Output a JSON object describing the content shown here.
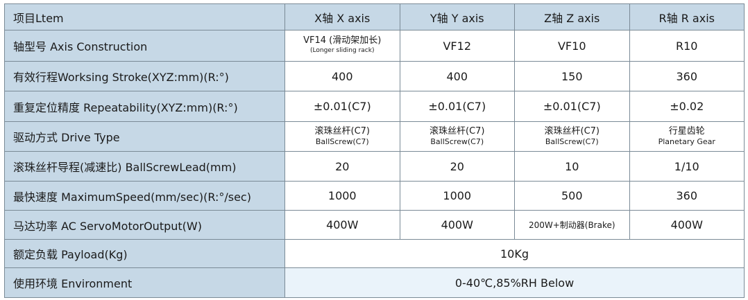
{
  "header": {
    "label": "项目Ltem",
    "x": "X轴 X axis",
    "y": "Y轴 Y axis",
    "z": "Z轴 Z axis",
    "r": "R轴 R axis"
  },
  "rows": {
    "construction": {
      "label": "轴型号 Axis Construction",
      "x_line1": "VF14 (滑动架加长)",
      "x_line2": "(Longer sliding rack)",
      "y": "VF12",
      "z": "VF10",
      "r": "R10"
    },
    "stroke": {
      "label": "有效行程Worksing Stroke(XYZ:mm)(R:°)",
      "x": "400",
      "y": "400",
      "z": "150",
      "r": "360"
    },
    "repeatability": {
      "label": "重复定位精度 Repeatability(XYZ:mm)(R:°)",
      "x": "±0.01(C7)",
      "y": "±0.01(C7)",
      "z": "±0.01(C7)",
      "r": "±0.02"
    },
    "drive": {
      "label": "驱动方式 Drive Type",
      "x_line1": "滚珠丝杆(C7)",
      "x_line2": "BallScrew(C7)",
      "y_line1": "滚珠丝杆(C7)",
      "y_line2": "BallScrew(C7)",
      "z_line1": "滚珠丝杆(C7)",
      "z_line2": "BallScrew(C7)",
      "r_line1": "行星齿轮",
      "r_line2": "Planetary Gear"
    },
    "lead": {
      "label": "滚珠丝杆导程(减速比) BallScrewLead(mm)",
      "x": "20",
      "y": "20",
      "z": "10",
      "r": "1/10"
    },
    "speed": {
      "label": "最快速度 MaximumSpeed(mm/sec)(R:°/sec)",
      "x": "1000",
      "y": "1000",
      "z": "500",
      "r": "360"
    },
    "motor": {
      "label": "马达功率 AC ServoMotorOutput(W)",
      "x": "400W",
      "y": "400W",
      "z": "200W+制动器(Brake)",
      "r": "400W"
    },
    "payload": {
      "label": "额定负载 Payload(Kg)",
      "value": "10Kg"
    },
    "environment": {
      "label": "使用环境 Environment",
      "value": "0-40℃,85%RH Below"
    }
  },
  "colors": {
    "label_bg": "#c6d8e6",
    "shade_bg": "#eaf3fa",
    "border": "#7a8a96",
    "text": "#1a1a1a"
  }
}
